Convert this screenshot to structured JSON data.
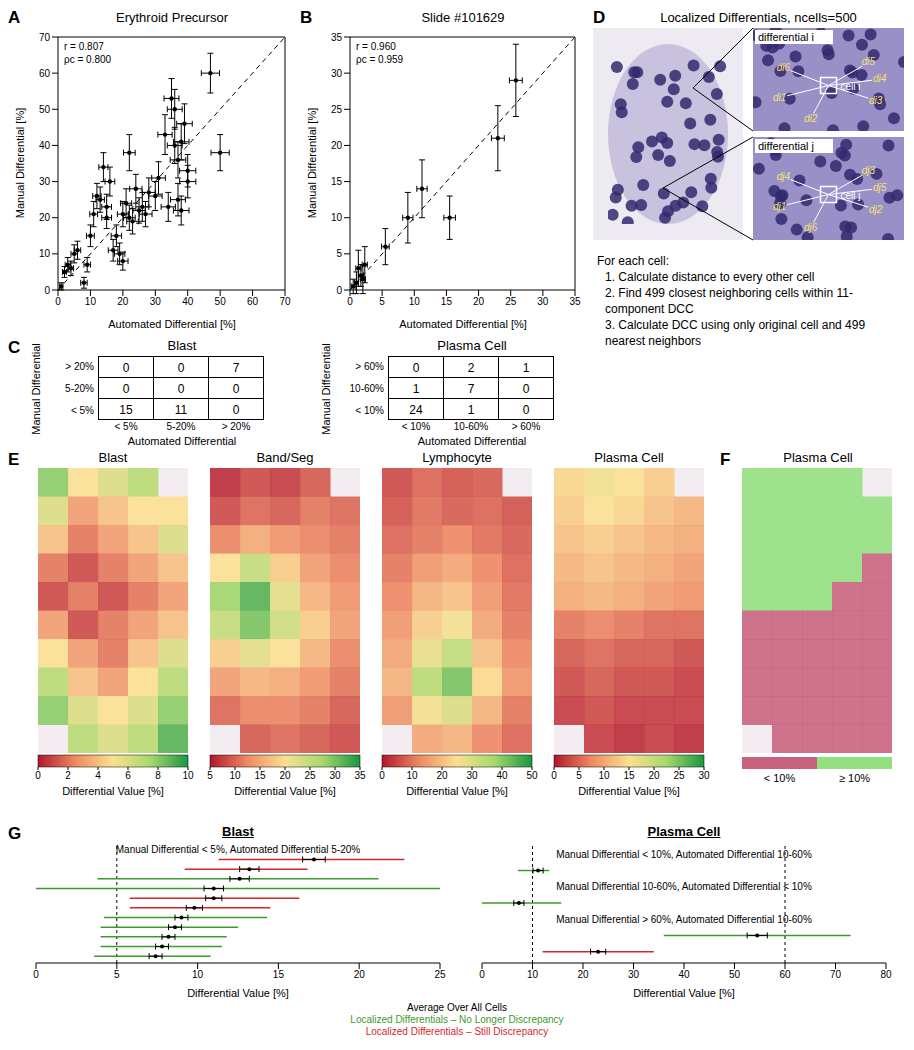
{
  "chart_data": [
    {
      "panel": "A",
      "type": "scatter",
      "title": "Erythroid Precursor",
      "annotations": [
        "r = 0.807",
        "ρc = 0.800"
      ],
      "x_label": "Automated Differential [%]",
      "y_label": "Manual Differential [%]",
      "xlim": [
        0,
        70
      ],
      "ylim": [
        0,
        70
      ],
      "xticks": [
        0,
        10,
        20,
        30,
        40,
        50,
        60,
        70
      ],
      "yticks": [
        0,
        10,
        20,
        30,
        40,
        50,
        60,
        70
      ],
      "reference_line": {
        "x": [
          0,
          70
        ],
        "y": [
          0,
          70
        ],
        "line_style": "dashed"
      },
      "series": [
        {
          "color": "#000000",
          "marker": "circle",
          "x": [
            1,
            2,
            3,
            4,
            5,
            6,
            8,
            9,
            10,
            11,
            12,
            13,
            14,
            15,
            15,
            16,
            17,
            18,
            19,
            20,
            20,
            21,
            22,
            22,
            23,
            24,
            25,
            26,
            27,
            28,
            30,
            31,
            33,
            34,
            35,
            36,
            36,
            37,
            37,
            38,
            38,
            39,
            40,
            40,
            47,
            50
          ],
          "values": [
            1,
            5,
            7,
            6,
            10,
            11,
            2,
            7,
            15,
            21,
            26,
            25,
            34,
            23,
            20,
            30,
            11,
            15,
            10,
            21,
            8,
            24,
            20,
            38,
            19,
            28,
            22,
            23,
            21,
            27,
            26,
            31,
            43,
            23,
            53,
            50,
            40,
            36,
            25,
            22,
            41,
            46,
            33,
            30,
            60,
            38
          ],
          "x_error": [
            0.5,
            0.6,
            0.8,
            0.8,
            1,
            1,
            1,
            1,
            1.2,
            1.2,
            1.3,
            1.3,
            1.4,
            1.5,
            1.5,
            1.5,
            1.5,
            1.6,
            1.6,
            1.7,
            1.6,
            1.7,
            1.8,
            1.8,
            1.8,
            1.9,
            1.9,
            2,
            2,
            2,
            2.1,
            2.1,
            2.2,
            2.2,
            2.3,
            2.3,
            2.3,
            2.4,
            2.3,
            2.4,
            2.4,
            2.4,
            2.5,
            2.5,
            2.8,
            2.8
          ],
          "y_error": [
            1,
            1.5,
            2,
            2,
            2.5,
            2.5,
            1.5,
            2,
            3,
            3.5,
            3.5,
            3.5,
            4,
            3.5,
            3,
            4,
            3,
            3,
            3,
            3.5,
            2.5,
            4,
            3.5,
            5,
            3.5,
            4,
            3.5,
            4,
            3.5,
            4,
            4,
            4.5,
            5.5,
            4,
            5.5,
            5.5,
            5,
            5,
            4.5,
            4,
            5,
            5.5,
            4.5,
            4.5,
            5.5,
            5
          ]
        }
      ]
    },
    {
      "panel": "B",
      "type": "scatter",
      "title": "Slide #101629",
      "annotations": [
        "r = 0.960",
        "ρc = 0.959"
      ],
      "x_label": "Automated Differential [%]",
      "y_label": "Manual Differential [%]",
      "xlim": [
        0,
        35
      ],
      "ylim": [
        0,
        35
      ],
      "xticks": [
        0,
        5,
        10,
        15,
        20,
        25,
        30,
        35
      ],
      "yticks": [
        0,
        5,
        10,
        15,
        20,
        25,
        30,
        35
      ],
      "reference_line": {
        "x": [
          0,
          35
        ],
        "y": [
          0,
          35
        ],
        "line_style": "dashed"
      },
      "series": [
        {
          "color": "#000000",
          "marker": "circle",
          "x": [
            0.5,
            1,
            1.3,
            1.7,
            2,
            2.3,
            5.5,
            9,
            11.2,
            15.5,
            23,
            25.8
          ],
          "values": [
            0.5,
            1,
            3,
            2,
            1.5,
            3.5,
            6,
            10,
            14,
            10,
            21,
            29
          ],
          "x_error": [
            0.3,
            0.3,
            0.4,
            0.4,
            0.4,
            0.4,
            0.6,
            0.8,
            0.8,
            0.9,
            1,
            1
          ],
          "y_error": [
            1,
            1.5,
            2.5,
            1.5,
            2,
            2.5,
            2.5,
            3.5,
            4,
            3,
            4.5,
            5
          ]
        }
      ]
    },
    {
      "panel": "E",
      "type": "heatmap",
      "title": "Blast",
      "cells": [
        [
          8,
          5,
          6,
          7,
          null
        ],
        [
          6,
          3,
          4,
          5,
          5
        ],
        [
          4,
          2,
          3,
          4,
          6
        ],
        [
          2,
          1,
          2,
          3,
          4
        ],
        [
          1,
          2,
          1,
          2,
          3
        ],
        [
          3,
          1,
          2,
          3,
          4
        ],
        [
          5,
          3,
          2,
          4,
          6
        ],
        [
          7,
          4,
          3,
          5,
          7
        ],
        [
          8,
          6,
          5,
          6,
          8
        ],
        [
          null,
          7,
          6,
          7,
          9
        ]
      ],
      "colorbar": {
        "range": [
          0,
          10
        ],
        "ticks": [
          0,
          2,
          4,
          6,
          8,
          10
        ],
        "label": "Differential Value [%]"
      }
    },
    {
      "type": "heatmap",
      "title": "Band/Seg",
      "cells": [
        [
          6,
          8,
          7,
          9,
          null
        ],
        [
          8,
          10,
          9,
          11,
          10
        ],
        [
          12,
          15,
          13,
          12,
          11
        ],
        [
          20,
          25,
          18,
          14,
          12
        ],
        [
          28,
          32,
          22,
          16,
          13
        ],
        [
          25,
          30,
          24,
          18,
          14
        ],
        [
          18,
          22,
          20,
          16,
          12
        ],
        [
          14,
          16,
          15,
          13,
          11
        ],
        [
          10,
          12,
          12,
          11,
          9
        ],
        [
          null,
          9,
          10,
          9,
          8
        ]
      ],
      "colorbar": {
        "range": [
          5,
          35
        ],
        "ticks": [
          5,
          10,
          15,
          20,
          25,
          30,
          35
        ],
        "label": "Differential Value [%]"
      }
    },
    {
      "type": "heatmap",
      "title": "Lymphocyte",
      "cells": [
        [
          5,
          8,
          6,
          7,
          null
        ],
        [
          6,
          9,
          7,
          8,
          6
        ],
        [
          8,
          10,
          12,
          9,
          7
        ],
        [
          10,
          14,
          16,
          12,
          8
        ],
        [
          12,
          18,
          20,
          14,
          9
        ],
        [
          14,
          22,
          26,
          16,
          10
        ],
        [
          16,
          28,
          34,
          20,
          12
        ],
        [
          18,
          35,
          42,
          24,
          14
        ],
        [
          14,
          26,
          30,
          18,
          10
        ],
        [
          null,
          16,
          18,
          12,
          8
        ]
      ],
      "colorbar": {
        "range": [
          0,
          50
        ],
        "ticks": [
          0,
          10,
          20,
          30,
          40,
          50
        ],
        "label": "Differential Value [%]"
      }
    },
    {
      "type": "heatmap",
      "title": "Plasma Cell",
      "cells": [
        [
          14,
          16,
          15,
          13,
          null
        ],
        [
          13,
          15,
          14,
          12,
          11
        ],
        [
          12,
          13,
          12,
          11,
          10
        ],
        [
          11,
          12,
          11,
          10,
          9
        ],
        [
          10,
          11,
          10,
          9,
          8
        ],
        [
          6,
          7,
          6,
          5,
          5
        ],
        [
          4,
          5,
          4,
          4,
          3
        ],
        [
          3,
          4,
          3,
          3,
          2
        ],
        [
          2,
          3,
          2,
          2,
          2
        ],
        [
          null,
          2,
          1,
          2,
          1
        ]
      ],
      "colorbar": {
        "range": [
          0,
          30
        ],
        "ticks": [
          0,
          5,
          10,
          15,
          20,
          25,
          30
        ],
        "label": "Differential Value [%]"
      }
    },
    {
      "panel": "F",
      "type": "heatmap",
      "title": "Plasma Cell",
      "cells": [
        [
          14,
          16,
          15,
          13,
          null
        ],
        [
          13,
          15,
          14,
          12,
          11
        ],
        [
          12,
          13,
          12,
          11,
          10
        ],
        [
          11,
          12,
          11,
          10,
          9
        ],
        [
          10,
          11,
          10,
          9,
          8
        ],
        [
          6,
          7,
          6,
          5,
          5
        ],
        [
          4,
          5,
          4,
          4,
          3
        ],
        [
          3,
          4,
          3,
          3,
          2
        ],
        [
          2,
          3,
          2,
          2,
          2
        ],
        [
          null,
          2,
          1,
          2,
          1
        ]
      ],
      "threshold": 10,
      "categories": [
        "< 10%",
        "≥ 10%"
      ],
      "colors": [
        "#c8627c",
        "#93e07e"
      ]
    },
    {
      "panel": "G",
      "type": "interval",
      "title": "Blast",
      "x_label": "Differential Value [%]",
      "xlim": [
        0,
        25
      ],
      "xticks": [
        0,
        5,
        10,
        15,
        20,
        25
      ],
      "reference_lines": [
        5
      ],
      "groups": [
        {
          "label": "Manual Differential < 5%, Automated Differential 5-20%",
          "rows": [
            {
              "mean": 17.2,
              "mean_error": 0.7,
              "range": [
                11.3,
                22.8
              ],
              "color": "#d62728"
            },
            {
              "mean": 13.2,
              "mean_error": 0.6,
              "range": [
                9.2,
                16.8
              ],
              "color": "#d62728"
            },
            {
              "mean": 12.6,
              "mean_error": 0.6,
              "range": [
                3.8,
                21.2
              ],
              "color": "#3c9a2c"
            },
            {
              "mean": 11.0,
              "mean_error": 0.6,
              "range": [
                0,
                25
              ],
              "color": "#3c9a2c"
            },
            {
              "mean": 11.0,
              "mean_error": 0.5,
              "range": [
                5.8,
                16.3
              ],
              "color": "#d62728"
            },
            {
              "mean": 9.8,
              "mean_error": 0.5,
              "range": [
                5.8,
                14.5
              ],
              "color": "#d62728"
            },
            {
              "mean": 9.0,
              "mean_error": 0.4,
              "range": [
                4.2,
                14.3
              ],
              "color": "#3c9a2c"
            },
            {
              "mean": 8.6,
              "mean_error": 0.4,
              "range": [
                4.0,
                12.5
              ],
              "color": "#3c9a2c"
            },
            {
              "mean": 8.2,
              "mean_error": 0.4,
              "range": [
                4.0,
                11.8
              ],
              "color": "#3c9a2c"
            },
            {
              "mean": 7.8,
              "mean_error": 0.4,
              "range": [
                4.0,
                11.5
              ],
              "color": "#3c9a2c"
            },
            {
              "mean": 7.4,
              "mean_error": 0.4,
              "range": [
                3.6,
                10.8
              ],
              "color": "#3c9a2c"
            }
          ]
        }
      ]
    },
    {
      "type": "interval",
      "title": "Plasma Cell",
      "x_label": "Differential Value [%]",
      "xlim": [
        0,
        80
      ],
      "xticks": [
        0,
        10,
        20,
        30,
        40,
        50,
        60,
        70,
        80
      ],
      "reference_lines": [
        10,
        60
      ],
      "groups": [
        {
          "label": "Manual Differential < 10%, Automated Differential 10-60%",
          "rows": [
            {
              "mean": 11.1,
              "mean_error": 1,
              "range": [
                7.1,
                13.3
              ],
              "color": "#3c9a2c"
            }
          ]
        },
        {
          "label": "Manual Differential 10-60%, Automated Differential < 10%",
          "rows": [
            {
              "mean": 7.3,
              "mean_error": 1,
              "range": [
                0,
                15.7
              ],
              "color": "#3c9a2c"
            }
          ]
        },
        {
          "label": "Manual Differential > 60%, Automated Differential 10-60%",
          "rows": [
            {
              "mean": 54.5,
              "mean_error": 2,
              "range": [
                36,
                73
              ],
              "color": "#3c9a2c"
            },
            {
              "mean": 23,
              "mean_error": 1.5,
              "range": [
                12,
                34
              ],
              "color": "#d62728"
            }
          ]
        }
      ]
    }
  ],
  "G_legend": [
    {
      "name": "Average Over All Cells",
      "color": "#000000"
    },
    {
      "name": "Localized Differentials – No Longer Discrepancy",
      "color": "#3c9a2c"
    },
    {
      "name": "Localized Differentials – Still Discrepancy",
      "color": "#d62728"
    }
  ],
  "panel_C": {
    "label": "C",
    "x_label": "Automated Differential",
    "y_label": "Manual Differential",
    "tables": [
      {
        "title": "Blast",
        "rows": [
          "> 20%",
          "5-20%",
          "< 5%"
        ],
        "columns": [
          "< 5%",
          "5-20%",
          "> 20%"
        ],
        "values": [
          [
            0,
            0,
            7
          ],
          [
            0,
            0,
            0
          ],
          [
            15,
            11,
            0
          ]
        ]
      },
      {
        "title": "Plasma Cell",
        "rows": [
          "> 60%",
          "10-60%",
          "< 10%"
        ],
        "columns": [
          "< 10%",
          "10-60%",
          "> 60%"
        ],
        "values": [
          [
            0,
            2,
            1
          ],
          [
            1,
            7,
            0
          ],
          [
            24,
            1,
            0
          ]
        ]
      }
    ]
  },
  "panel_D": {
    "label": "D",
    "title": "Localized Differentials, ncells=500",
    "insets": [
      {
        "title": "differential i",
        "cell": "cell i",
        "distances": [
          "di6",
          "di5",
          "di4",
          "di3",
          "di2",
          "di1"
        ]
      },
      {
        "title": "differential j",
        "cell": "cell j",
        "distances": [
          "dj4",
          "dj3",
          "dj5",
          "dj2",
          "dj6",
          "dj1"
        ]
      }
    ],
    "steps_title": "For each cell:",
    "steps": [
      "1. Calculate distance to every other cell",
      "2. Find 499 closest neighboring cells within 11-component DCC",
      "3. Calculate DCC using only original cell and 499 nearest neighbors"
    ]
  }
}
